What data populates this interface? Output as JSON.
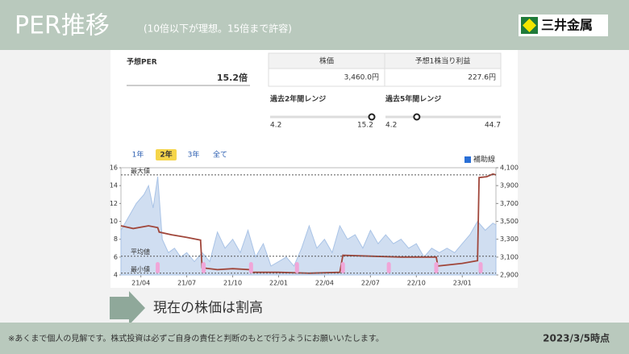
{
  "header": {
    "title": "PER推移",
    "subtitle": "(10倍以下が理想。15倍まで許容)",
    "logo": "三井金属"
  },
  "per": {
    "label": "予想PER",
    "value": 15.2,
    "value_label": "15.2倍"
  },
  "table": {
    "headers": [
      "株価",
      "予想1株当り利益"
    ],
    "values": [
      "3,460.0円",
      "227.6円"
    ]
  },
  "ranges": [
    {
      "label": "過去2年間レンジ",
      "min": 4.2,
      "max": 15.2
    },
    {
      "label": "過去5年間レンジ",
      "min": 4.2,
      "max": 44.7
    }
  ],
  "tabs": [
    "1年",
    "2年",
    "3年",
    "全て"
  ],
  "selected_tab": 1,
  "checkbox": "補助線",
  "chart_data": {
    "type": "line",
    "xlim": [
      1.7,
      26.2
    ],
    "xticks": [
      {
        "value": 3,
        "label": "21/04"
      },
      {
        "value": 6,
        "label": "21/07"
      },
      {
        "value": 9,
        "label": "21/10"
      },
      {
        "value": 12,
        "label": "22/01"
      },
      {
        "value": 15,
        "label": "22/04"
      },
      {
        "value": 18,
        "label": "22/07"
      },
      {
        "value": 21,
        "label": "22/10"
      },
      {
        "value": 24,
        "label": "23/01"
      }
    ],
    "ylim": [
      4,
      16
    ],
    "yticks": [
      4,
      6,
      8,
      10,
      12,
      14,
      16
    ],
    "y2lim": [
      2900,
      4100
    ],
    "y2ticks": [
      {
        "value": 2900,
        "label": "2,900"
      },
      {
        "value": 3100,
        "label": "3,100"
      },
      {
        "value": 3300,
        "label": "3,300"
      },
      {
        "value": 3500,
        "label": "3,500"
      },
      {
        "value": 3700,
        "label": "3,700"
      },
      {
        "value": 3900,
        "label": "3,900"
      },
      {
        "value": 4100,
        "label": "4,100"
      }
    ],
    "series": [
      {
        "axis": "y2",
        "color": "#a9c3e6",
        "x": [
          1.7,
          2.2,
          2.7,
          3.2,
          3.5,
          3.8,
          4.1,
          4.4,
          4.8,
          5.2,
          5.6,
          6.0,
          6.5,
          7.0,
          7.5,
          8.0,
          8.5,
          9.0,
          9.5,
          10.0,
          10.5,
          11.0,
          11.5,
          12.0,
          12.5,
          13.0,
          13.5,
          14.0,
          14.5,
          15.0,
          15.5,
          16.0,
          16.5,
          17.0,
          17.5,
          18.0,
          18.5,
          19.0,
          19.5,
          20.0,
          20.5,
          21.0,
          21.5,
          22.0,
          22.5,
          23.0,
          23.5,
          24.0,
          24.5,
          25.0,
          25.5,
          26.0,
          26.2
        ],
        "values": [
          3400,
          3550,
          3700,
          3800,
          3900,
          3650,
          4000,
          3300,
          3150,
          3200,
          3100,
          3150,
          3050,
          3150,
          3050,
          3380,
          3200,
          3300,
          3150,
          3400,
          3100,
          3250,
          3000,
          3050,
          3100,
          3000,
          3200,
          3450,
          3200,
          3300,
          3150,
          3450,
          3300,
          3350,
          3200,
          3400,
          3250,
          3350,
          3250,
          3300,
          3200,
          3250,
          3100,
          3200,
          3150,
          3200,
          3150,
          3250,
          3350,
          3500,
          3400,
          3480,
          3460
        ]
      },
      {
        "axis": "y",
        "color": "#a0463a",
        "x": [
          1.7,
          2.5,
          3.5,
          4.1,
          4.2,
          5.0,
          6.0,
          6.9,
          7.0,
          8.0,
          9.0,
          10.1,
          10.2,
          12.0,
          14.0,
          16.0,
          16.2,
          18.0,
          20.0,
          22.3,
          22.4,
          24.0,
          25.0,
          25.1,
          25.6,
          26.0,
          26.2
        ],
        "values": [
          9.5,
          9.2,
          9.5,
          9.3,
          8.8,
          8.5,
          8.2,
          7.9,
          4.8,
          4.6,
          4.7,
          4.6,
          4.3,
          4.3,
          4.2,
          4.3,
          6.2,
          6.1,
          6.0,
          6.0,
          5.0,
          5.3,
          5.6,
          14.9,
          15.0,
          15.3,
          15.2
        ]
      }
    ],
    "annotations": [
      {
        "label": "最大値",
        "value": 15.2
      },
      {
        "label": "平均値",
        "value": 6.1
      },
      {
        "label": "最小値",
        "value": 4.2
      }
    ],
    "events_x": [
      4.1,
      7.1,
      10.2,
      13.2,
      16.2,
      19.2,
      22.3,
      25.2
    ]
  },
  "conclusion": "現在の株価は割高",
  "footer": {
    "note": "※あくまで個人の見解です。株式投資は必ずご自身の責任と判断のもとで行うようにお願いいたします。",
    "date": "2023/3/5時点"
  }
}
